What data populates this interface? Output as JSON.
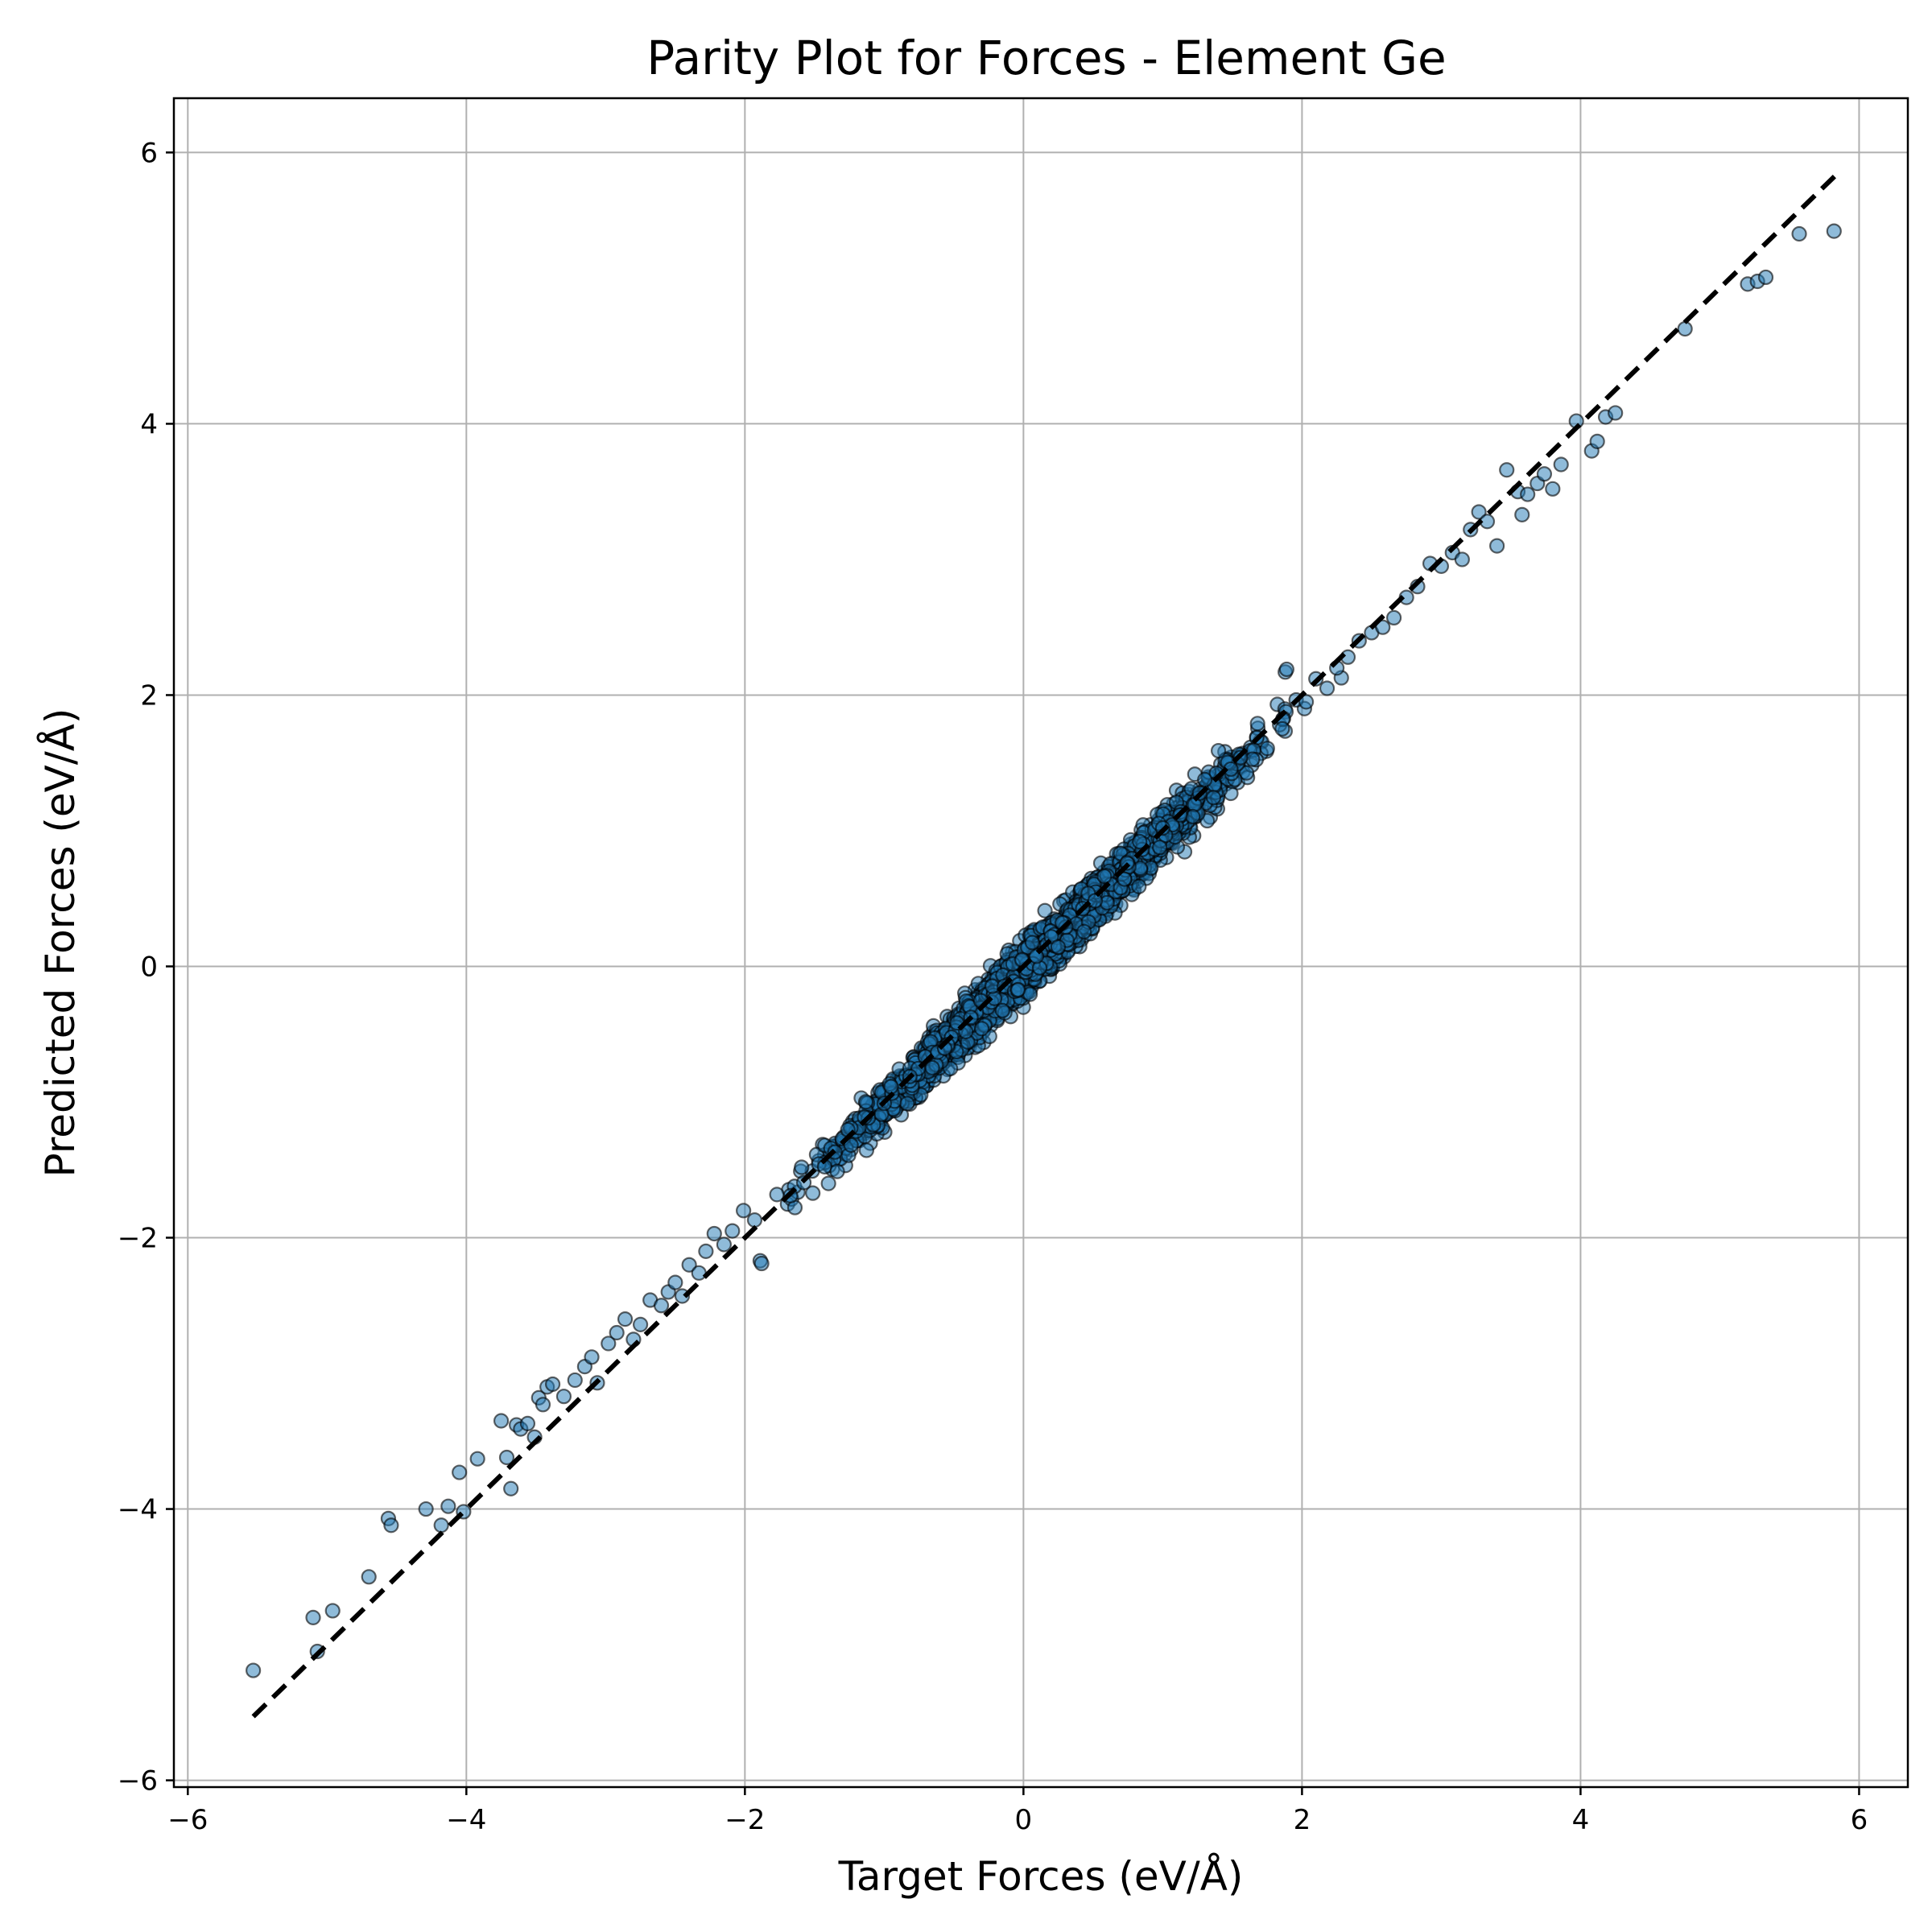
{
  "chart_data": {
    "type": "scatter",
    "title": "Parity Plot for Forces - Element Ge",
    "xlabel": "Target Forces (eV/Å)",
    "ylabel": "Predicted Forces (eV/Å)",
    "xlim": [
      -6.1,
      6.35
    ],
    "ylim": [
      -6.05,
      6.4
    ],
    "xticks": [
      -6,
      -4,
      -2,
      0,
      2,
      4,
      6
    ],
    "yticks": [
      -6,
      -4,
      -2,
      0,
      2,
      4,
      6
    ],
    "xtick_labels": [
      "−6",
      "−4",
      "−2",
      "0",
      "2",
      "4",
      "6"
    ],
    "ytick_labels": [
      "−6",
      "−4",
      "−2",
      "0",
      "2",
      "4",
      "6"
    ],
    "grid": true,
    "marker_color": "#1f77b4",
    "marker_edge_color": "#000000",
    "marker_alpha": 0.5,
    "parity_line": {
      "x": [
        -5.53,
        5.83
      ],
      "y": [
        -5.53,
        5.83
      ],
      "color": "#000000",
      "style": "dashed"
    },
    "series": [
      {
        "x": [
          -5.53,
          -5.1,
          -5.07,
          -4.96,
          -4.7,
          -4.56,
          -4.54,
          -4.29,
          -4.18,
          -4.13,
          -4.05,
          -4.02,
          -3.92,
          -3.75,
          -3.71,
          -3.68,
          -3.64,
          -3.61,
          -3.56,
          -3.51,
          -3.48,
          -3.45,
          -3.42,
          -3.38,
          -3.3,
          -3.22,
          -3.15,
          -3.1,
          -3.06,
          -2.98,
          -2.92,
          -2.86,
          -2.8,
          -2.75,
          -2.68,
          -2.6,
          -2.55,
          -2.5,
          -2.45,
          -2.4,
          -2.33,
          -2.28,
          -2.22,
          -2.15,
          -2.09,
          -2.01,
          -1.93,
          -1.89,
          -1.88,
          1.88,
          1.89,
          2.03,
          2.1,
          2.18,
          2.25,
          2.33,
          2.41,
          2.5,
          2.58,
          2.66,
          2.75,
          2.83,
          2.92,
          3.0,
          3.08,
          3.15,
          3.21,
          3.27,
          3.33,
          3.4,
          3.47,
          3.55,
          3.58,
          3.62,
          3.69,
          3.74,
          3.8,
          3.86,
          3.97,
          4.08,
          4.12,
          4.18,
          4.25,
          4.75,
          5.2,
          5.27,
          5.33,
          5.57,
          5.82,
          1.0,
          -1.0,
          1.4,
          -1.4
        ],
        "y": [
          -5.19,
          -4.8,
          -5.05,
          -4.75,
          -4.5,
          -4.07,
          -4.12,
          -4.0,
          -4.12,
          -3.98,
          -3.73,
          -4.02,
          -3.63,
          -3.35,
          -3.62,
          -3.85,
          -3.38,
          -3.41,
          -3.37,
          -3.47,
          -3.18,
          -3.23,
          -3.1,
          -3.08,
          -3.17,
          -3.05,
          -2.95,
          -2.88,
          -3.07,
          -2.78,
          -2.7,
          -2.6,
          -2.75,
          -2.64,
          -2.46,
          -2.5,
          -2.4,
          -2.33,
          -2.43,
          -2.2,
          -2.26,
          -2.1,
          -1.97,
          -2.05,
          -1.95,
          -1.8,
          -1.87,
          -2.17,
          -2.19,
          2.17,
          2.19,
          1.95,
          2.12,
          2.05,
          2.2,
          2.28,
          2.4,
          2.46,
          2.5,
          2.57,
          2.72,
          2.8,
          2.97,
          2.95,
          3.05,
          3.0,
          3.22,
          3.35,
          3.28,
          3.1,
          3.66,
          3.5,
          3.33,
          3.48,
          3.56,
          3.63,
          3.52,
          3.7,
          4.02,
          3.8,
          3.87,
          4.05,
          4.08,
          4.7,
          5.03,
          5.05,
          5.08,
          5.4,
          5.42,
          1.02,
          -1.01,
          1.59,
          -1.6
        ],
        "band": {
          "x_range": [
            -2.3,
            2.8
          ],
          "y_spread": 0.28,
          "count": 2600
        }
      }
    ]
  }
}
